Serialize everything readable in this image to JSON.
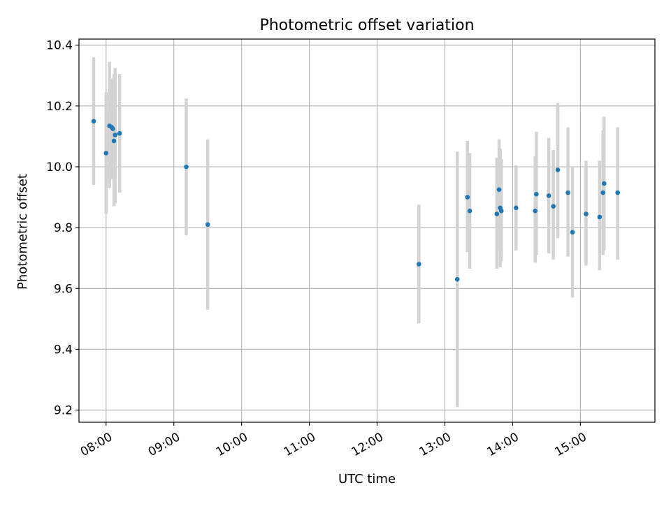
{
  "chart_data": {
    "type": "scatter",
    "title": "Photometric offset variation",
    "xlabel": "UTC time",
    "ylabel": "Photometric offset",
    "x_unit": "UTC hours",
    "xlim": [
      "07:36",
      "16:06"
    ],
    "ylim": [
      9.16,
      10.42
    ],
    "x_ticks": [
      "08:00",
      "09:00",
      "10:00",
      "11:00",
      "12:00",
      "13:00",
      "14:00",
      "15:00"
    ],
    "y_ticks": [
      "9.2",
      "9.4",
      "9.6",
      "9.8",
      "10.0",
      "10.2",
      "10.4"
    ],
    "grid": true,
    "point_color": "#1f77b4",
    "errorbar_color": "#d3d3d3",
    "series": [
      {
        "points": [
          {
            "t": "07:49",
            "y": 10.15,
            "lo": 9.94,
            "hi": 10.36
          },
          {
            "t": "08:00",
            "y": 10.045,
            "lo": 9.845,
            "hi": 10.245
          },
          {
            "t": "08:03",
            "y": 10.135,
            "lo": 9.93,
            "hi": 10.345
          },
          {
            "t": "08:05",
            "y": 10.13,
            "lo": 9.96,
            "hi": 10.29
          },
          {
            "t": "08:06",
            "y": 10.125,
            "lo": 9.96,
            "hi": 10.29
          },
          {
            "t": "08:07",
            "y": 10.085,
            "lo": 9.87,
            "hi": 10.305
          },
          {
            "t": "08:08",
            "y": 10.105,
            "lo": 9.88,
            "hi": 10.325
          },
          {
            "t": "08:12",
            "y": 10.11,
            "lo": 9.915,
            "hi": 10.305
          },
          {
            "t": "09:11",
            "y": 10.0,
            "lo": 9.775,
            "hi": 10.225
          },
          {
            "t": "09:30",
            "y": 9.81,
            "lo": 9.53,
            "hi": 10.09
          },
          {
            "t": "12:37",
            "y": 9.68,
            "lo": 9.485,
            "hi": 9.875
          },
          {
            "t": "13:11",
            "y": 9.63,
            "lo": 9.21,
            "hi": 10.05
          },
          {
            "t": "13:20",
            "y": 9.9,
            "lo": 9.72,
            "hi": 10.085
          },
          {
            "t": "13:22",
            "y": 9.855,
            "lo": 9.665,
            "hi": 10.045
          },
          {
            "t": "13:46",
            "y": 9.845,
            "lo": 9.665,
            "hi": 10.03
          },
          {
            "t": "13:48",
            "y": 9.925,
            "lo": 9.725,
            "hi": 10.09
          },
          {
            "t": "13:49",
            "y": 9.865,
            "lo": 9.67,
            "hi": 10.06
          },
          {
            "t": "13:50",
            "y": 9.855,
            "lo": 9.69,
            "hi": 10.025
          },
          {
            "t": "14:03",
            "y": 9.865,
            "lo": 9.725,
            "hi": 10.005
          },
          {
            "t": "14:20",
            "y": 9.855,
            "lo": 9.685,
            "hi": 10.035
          },
          {
            "t": "14:21",
            "y": 9.91,
            "lo": 9.71,
            "hi": 10.115
          },
          {
            "t": "14:32",
            "y": 9.905,
            "lo": 9.715,
            "hi": 10.095
          },
          {
            "t": "14:36",
            "y": 9.87,
            "lo": 9.695,
            "hi": 10.055
          },
          {
            "t": "14:40",
            "y": 9.99,
            "lo": 9.765,
            "hi": 10.21
          },
          {
            "t": "14:49",
            "y": 9.915,
            "lo": 9.705,
            "hi": 10.13
          },
          {
            "t": "14:53",
            "y": 9.785,
            "lo": 9.57,
            "hi": 10.0
          },
          {
            "t": "15:05",
            "y": 9.845,
            "lo": 9.675,
            "hi": 10.02
          },
          {
            "t": "15:17",
            "y": 9.835,
            "lo": 9.66,
            "hi": 10.02
          },
          {
            "t": "15:20",
            "y": 9.915,
            "lo": 9.71,
            "hi": 10.12
          },
          {
            "t": "15:21",
            "y": 9.945,
            "lo": 9.725,
            "hi": 10.165
          },
          {
            "t": "15:33",
            "y": 9.915,
            "lo": 9.695,
            "hi": 10.13
          }
        ]
      }
    ]
  }
}
